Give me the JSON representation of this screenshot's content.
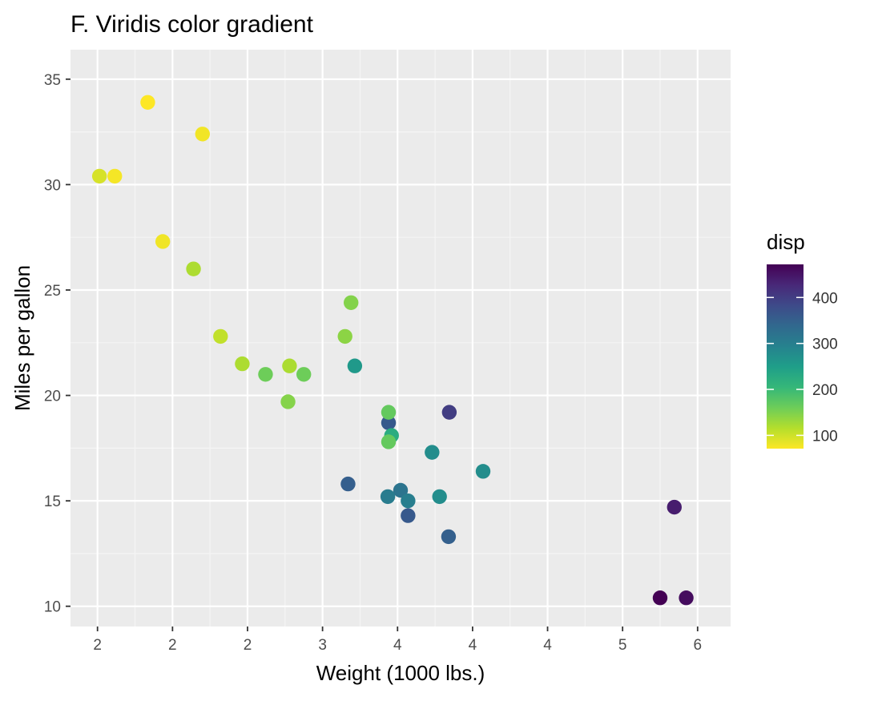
{
  "chart_data": {
    "type": "scatter",
    "title": "F. Viridis color gradient",
    "xlabel": "Weight (1000 lbs.)",
    "ylabel": "Miles per gallon",
    "x_tick_values": [
      1.5,
      2.0,
      2.5,
      3.0,
      3.5,
      4.0,
      4.5,
      5.0,
      5.5
    ],
    "x_tick_labels": [
      "2",
      "2",
      "2",
      "3",
      "4",
      "4",
      "4",
      "5",
      "6"
    ],
    "y_ticks": [
      10,
      15,
      20,
      25,
      30,
      35
    ],
    "xlim": [
      1.32,
      5.72
    ],
    "ylim": [
      9.04,
      36.4
    ],
    "grid": true,
    "legend": {
      "title": "disp",
      "position": "right",
      "ticks": [
        100,
        200,
        300,
        400
      ],
      "range": [
        71.1,
        472
      ],
      "palette": "viridis",
      "colors": [
        "#FDE725",
        "#B4DE2C",
        "#6DCD59",
        "#35B779",
        "#1F9E89",
        "#26828E",
        "#31688E",
        "#3E4A89",
        "#482878",
        "#440154"
      ]
    },
    "points": [
      {
        "x": 2.62,
        "y": 21.0,
        "disp": 160
      },
      {
        "x": 2.875,
        "y": 21.0,
        "disp": 160
      },
      {
        "x": 2.32,
        "y": 22.8,
        "disp": 108
      },
      {
        "x": 3.215,
        "y": 21.4,
        "disp": 258
      },
      {
        "x": 3.44,
        "y": 18.7,
        "disp": 360
      },
      {
        "x": 3.46,
        "y": 18.1,
        "disp": 225
      },
      {
        "x": 3.57,
        "y": 14.3,
        "disp": 360
      },
      {
        "x": 3.19,
        "y": 24.4,
        "disp": 146.7
      },
      {
        "x": 3.15,
        "y": 22.8,
        "disp": 140.8
      },
      {
        "x": 3.44,
        "y": 19.2,
        "disp": 167.6
      },
      {
        "x": 3.44,
        "y": 17.8,
        "disp": 167.6
      },
      {
        "x": 4.07,
        "y": 16.4,
        "disp": 275.8
      },
      {
        "x": 3.73,
        "y": 17.3,
        "disp": 275.8
      },
      {
        "x": 3.78,
        "y": 15.2,
        "disp": 275.8
      },
      {
        "x": 5.25,
        "y": 10.4,
        "disp": 472
      },
      {
        "x": 5.424,
        "y": 10.4,
        "disp": 460
      },
      {
        "x": 5.345,
        "y": 14.7,
        "disp": 440
      },
      {
        "x": 2.2,
        "y": 32.4,
        "disp": 78.7
      },
      {
        "x": 1.615,
        "y": 30.4,
        "disp": 75.7
      },
      {
        "x": 1.835,
        "y": 33.9,
        "disp": 71.1
      },
      {
        "x": 2.465,
        "y": 21.5,
        "disp": 120.1
      },
      {
        "x": 3.52,
        "y": 15.5,
        "disp": 318
      },
      {
        "x": 3.435,
        "y": 15.2,
        "disp": 304
      },
      {
        "x": 3.84,
        "y": 13.3,
        "disp": 350
      },
      {
        "x": 3.845,
        "y": 19.2,
        "disp": 400
      },
      {
        "x": 1.935,
        "y": 27.3,
        "disp": 79
      },
      {
        "x": 2.14,
        "y": 26.0,
        "disp": 120.3
      },
      {
        "x": 1.513,
        "y": 30.4,
        "disp": 95.1
      },
      {
        "x": 3.17,
        "y": 15.8,
        "disp": 351
      },
      {
        "x": 2.77,
        "y": 19.7,
        "disp": 145
      },
      {
        "x": 3.57,
        "y": 15.0,
        "disp": 301
      },
      {
        "x": 2.78,
        "y": 21.4,
        "disp": 121
      }
    ]
  }
}
